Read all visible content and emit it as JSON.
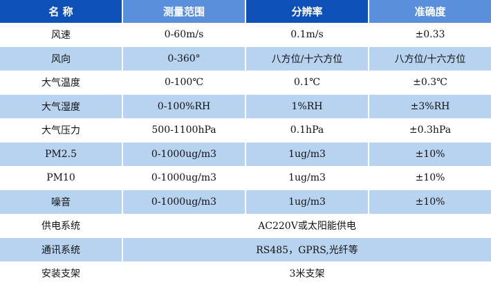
{
  "colors": {
    "header_dark": "#0d50b8",
    "header_light": "#5a8fdb",
    "row_alt": "#b8d3f0"
  },
  "headers": [
    "名 称",
    "测量范围",
    "分辨率",
    "准确度"
  ],
  "rows": [
    [
      "风速",
      "0-60m/s",
      "0.1m/s",
      "±0.33"
    ],
    [
      "风向",
      "0-360°",
      "八方位/十六方位",
      "八方位/十六方位"
    ],
    [
      "大气温度",
      "0-100℃",
      "0.1℃",
      "±0.3℃"
    ],
    [
      "大气湿度",
      "0-100%RH",
      "1%RH",
      "±3%RH"
    ],
    [
      "大气压力",
      "500-1100hPa",
      "0.1hPa",
      "±0.3hPa"
    ],
    [
      "PM2.5",
      "0-1000ug/m3",
      "1ug/m3",
      "±10%"
    ],
    [
      "PM10",
      "0-1000ug/m3",
      "1ug/m3",
      "±10%"
    ],
    [
      "噪音",
      "0-1000ug/m3",
      "1ug/m3",
      "±10%"
    ]
  ],
  "span_rows": [
    [
      "供电系统",
      "AC220V或太阳能供电"
    ],
    [
      "通讯系统",
      "RS485，GPRS,光纤等"
    ],
    [
      "安装支架",
      "3米支架"
    ]
  ]
}
